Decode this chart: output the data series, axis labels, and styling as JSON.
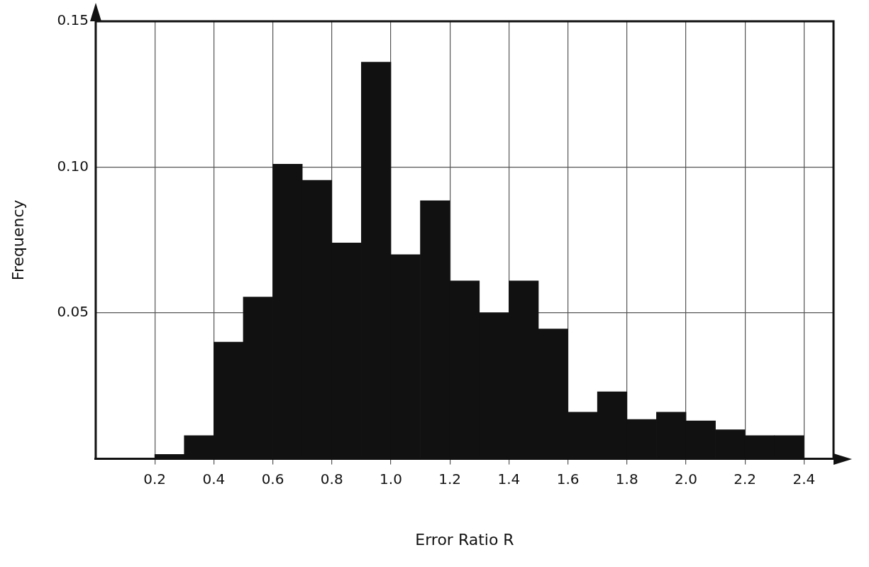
{
  "chart_data": {
    "type": "histogram",
    "xlabel": "Error Ratio R",
    "ylabel": "Frequency",
    "bins": [
      0.2,
      0.3,
      0.4,
      0.5,
      0.6,
      0.7,
      0.8,
      0.9,
      1.0,
      1.1,
      1.2,
      1.3,
      1.4,
      1.5,
      1.6,
      1.7,
      1.8,
      1.9,
      2.0,
      2.1,
      2.2,
      2.3,
      2.4
    ],
    "values": [
      0.0015,
      0.008,
      0.04,
      0.0555,
      0.101,
      0.0955,
      0.074,
      0.136,
      0.07,
      0.0885,
      0.061,
      0.05,
      0.061,
      0.0445,
      0.016,
      0.023,
      0.0135,
      0.016,
      0.013,
      0.01,
      0.008,
      0.008
    ],
    "color": "#111111",
    "xlim": [
      0,
      2.5
    ],
    "xticks": [
      0.2,
      0.4,
      0.6,
      0.8,
      {
        "value": 1,
        "label": "1.0"
      },
      1.2,
      1.4,
      1.6,
      1.8,
      {
        "value": 2,
        "label": "2.0"
      },
      2.2,
      2.4
    ],
    "ylim": [
      0,
      0.15
    ],
    "yticks": [
      {
        "value": 0.05,
        "label": "0.05"
      },
      {
        "value": 0.1,
        "label": "0.10"
      },
      {
        "value": 0.15,
        "label": "0.15"
      }
    ],
    "grid": true,
    "legend": false
  }
}
